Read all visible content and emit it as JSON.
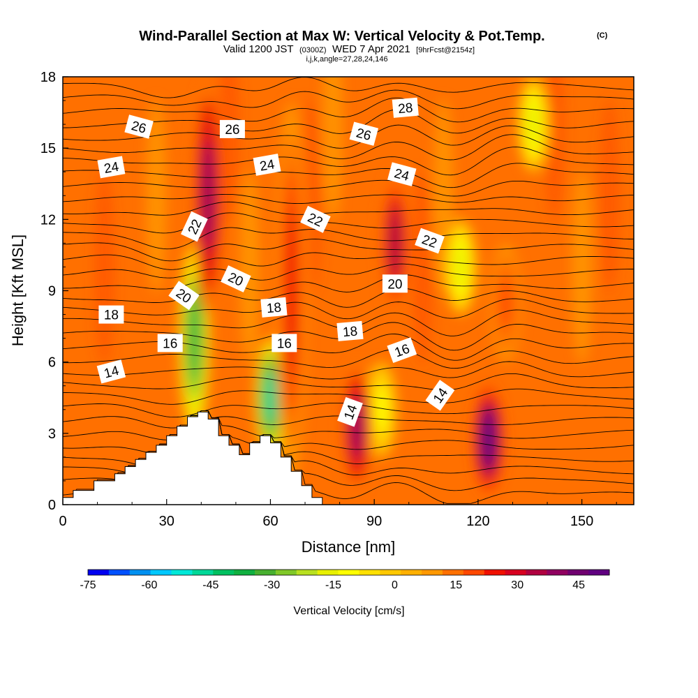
{
  "title": {
    "main": "Wind-Parallel Section at Max W: Vertical Velocity & Pot.Temp.",
    "copyright": "(C)",
    "valid_prefix": "Valid 1200 JST",
    "valid_utc": "(0300Z)",
    "valid_date": "WED 7 Apr 2021",
    "forecast": "[9hrFcst@2154z]",
    "params": "i,j,k,angle=27,28,24,146"
  },
  "chart_data": {
    "type": "heatmap",
    "title": "Wind-Parallel Section at Max W: Vertical Velocity & Pot.Temp.",
    "xlabel": "Distance [nm]",
    "ylabel": "Height [Kft MSL]",
    "xlim": [
      0,
      165
    ],
    "ylim": [
      0,
      18
    ],
    "xticks": [
      0,
      30,
      60,
      90,
      120,
      150
    ],
    "yticks": [
      0,
      3,
      6,
      9,
      12,
      15,
      18
    ],
    "colorbar": {
      "label": "Vertical Velocity [cm/s]",
      "range": [
        -75,
        52.5
      ],
      "step": 5,
      "ticks": [
        -75,
        -60,
        -45,
        -30,
        -15,
        0,
        15,
        30,
        45
      ],
      "colors": [
        "#0000f0",
        "#0050ff",
        "#0090f0",
        "#00c8ff",
        "#00e8d8",
        "#00d898",
        "#00c060",
        "#10b040",
        "#48b030",
        "#80c828",
        "#b8e020",
        "#e8f000",
        "#ffff00",
        "#ffe000",
        "#ffc800",
        "#ffb000",
        "#ff9800",
        "#ff7000",
        "#ff4800",
        "#f01000",
        "#d80020",
        "#b00040",
        "#900060",
        "#700070",
        "#600080"
      ]
    },
    "updrafts": [
      {
        "x": 42,
        "y0": 8,
        "y1": 18,
        "w_max": 35
      },
      {
        "x": 66,
        "y0": 1,
        "y1": 17,
        "w_max": 20
      },
      {
        "x": 85,
        "y0": 0.5,
        "y1": 6,
        "w_max": 35
      },
      {
        "x": 96,
        "y0": 8,
        "y1": 14,
        "w_max": 30
      },
      {
        "x": 123,
        "y0": 0.5,
        "y1": 5,
        "w_max": 50
      },
      {
        "x": 128,
        "y0": 6,
        "y1": 11,
        "w_max": 15
      }
    ],
    "downdrafts": [
      {
        "x": 38,
        "y0": 3,
        "y1": 11,
        "w_min": -40
      },
      {
        "x": 60,
        "y0": 2,
        "y1": 7,
        "w_min": -50
      },
      {
        "x": 92,
        "y0": 2,
        "y1": 6,
        "w_min": -15
      },
      {
        "x": 115,
        "y0": 8,
        "y1": 12,
        "w_min": -20
      },
      {
        "x": 136,
        "y0": 14,
        "y1": 18,
        "w_min": -20
      }
    ],
    "theta_contours": {
      "unit": "degC potential temperature",
      "levels": [
        14,
        16,
        18,
        20,
        22,
        24,
        26,
        28
      ],
      "labels": [
        {
          "text": "14",
          "x": 14,
          "y": 5.6,
          "angle": -15
        },
        {
          "text": "16",
          "x": 31,
          "y": 6.8,
          "angle": 0
        },
        {
          "text": "18",
          "x": 14,
          "y": 8.0,
          "angle": 0
        },
        {
          "text": "20",
          "x": 35,
          "y": 8.8,
          "angle": 35
        },
        {
          "text": "22",
          "x": 38,
          "y": 11.7,
          "angle": -65
        },
        {
          "text": "24",
          "x": 14,
          "y": 14.2,
          "angle": -10
        },
        {
          "text": "26",
          "x": 22,
          "y": 15.9,
          "angle": 15
        },
        {
          "text": "26",
          "x": 49,
          "y": 15.8,
          "angle": 0
        },
        {
          "text": "24",
          "x": 59,
          "y": 14.3,
          "angle": -10
        },
        {
          "text": "20",
          "x": 50,
          "y": 9.5,
          "angle": 25
        },
        {
          "text": "18",
          "x": 61,
          "y": 8.3,
          "angle": -5
        },
        {
          "text": "16",
          "x": 64,
          "y": 6.8,
          "angle": 0
        },
        {
          "text": "22",
          "x": 73,
          "y": 12.0,
          "angle": 25
        },
        {
          "text": "14",
          "x": 83,
          "y": 3.9,
          "angle": -70
        },
        {
          "text": "18",
          "x": 83,
          "y": 7.3,
          "angle": -5
        },
        {
          "text": "26",
          "x": 87,
          "y": 15.6,
          "angle": 15
        },
        {
          "text": "20",
          "x": 96,
          "y": 9.3,
          "angle": 0
        },
        {
          "text": "24",
          "x": 98,
          "y": 13.9,
          "angle": 15
        },
        {
          "text": "28",
          "x": 99,
          "y": 16.7,
          "angle": -5
        },
        {
          "text": "16",
          "x": 98,
          "y": 6.5,
          "angle": -20
        },
        {
          "text": "22",
          "x": 106,
          "y": 11.1,
          "angle": 20
        },
        {
          "text": "14",
          "x": 109,
          "y": 4.6,
          "angle": -55
        }
      ]
    },
    "terrain_kft": {
      "x": [
        0,
        3,
        3,
        9,
        9,
        15,
        15,
        18,
        18,
        21,
        21,
        24,
        24,
        27,
        27,
        30,
        30,
        33,
        33,
        36,
        36,
        39,
        39,
        42,
        42,
        45,
        45,
        48,
        48,
        51,
        51,
        54,
        54,
        57,
        57,
        60,
        60,
        63,
        63,
        66,
        66,
        69,
        69,
        72,
        72,
        75,
        75
      ],
      "y": [
        0.3,
        0.3,
        0.6,
        0.6,
        1.0,
        1.0,
        1.3,
        1.3,
        1.6,
        1.6,
        1.9,
        1.9,
        2.2,
        2.2,
        2.5,
        2.5,
        2.9,
        2.9,
        3.3,
        3.3,
        3.7,
        3.7,
        3.9,
        3.9,
        3.6,
        3.6,
        2.9,
        2.9,
        2.5,
        2.5,
        2.1,
        2.1,
        2.6,
        2.6,
        2.9,
        2.9,
        2.6,
        2.6,
        2.0,
        2.0,
        1.4,
        1.4,
        0.8,
        0.8,
        0.3,
        0.3,
        0.0
      ]
    }
  }
}
